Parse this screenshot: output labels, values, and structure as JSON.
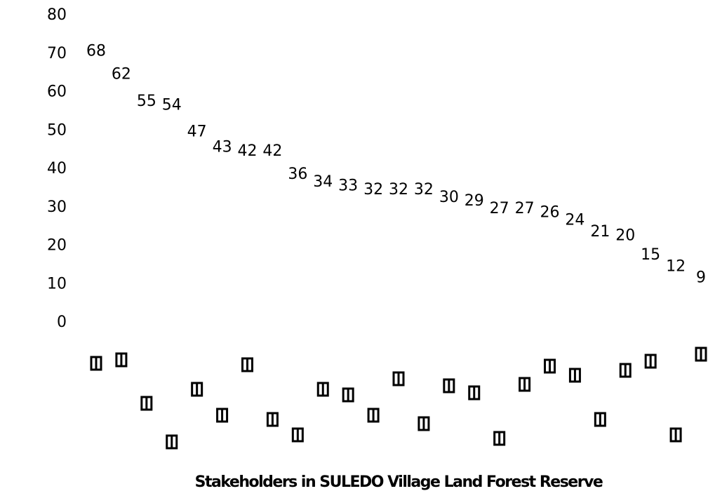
{
  "chart_data": {
    "type": "bar",
    "title": "",
    "xlabel": "Stakeholders in SULEDO Village Land Forest Reserve",
    "ylabel": "",
    "ylim": [
      0,
      80
    ],
    "y_ticks": [
      0,
      10,
      20,
      30,
      40,
      50,
      60,
      70,
      80
    ],
    "grid": false,
    "legend": "none",
    "bar_color": "#ffffff",
    "values": [
      68,
      62,
      55,
      54,
      47,
      43,
      42,
      42,
      36,
      34,
      33,
      32,
      32,
      32,
      30,
      29,
      27,
      27,
      26,
      24,
      21,
      20,
      15,
      12,
      9
    ],
    "data_labels": [
      "68",
      "62",
      "55",
      "54",
      "47",
      "43",
      "42",
      "42",
      "36",
      "34",
      "33",
      "32",
      "32",
      "32",
      "30",
      "29",
      "27",
      "27",
      "26",
      "24",
      "21",
      "20",
      "15",
      "12",
      "9"
    ]
  }
}
